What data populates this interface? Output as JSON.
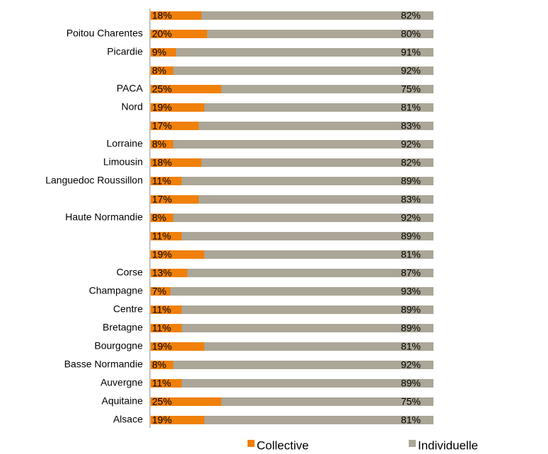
{
  "chart_data": {
    "type": "stacked-bar-horizontal",
    "categories": [
      null,
      "Poitou Charentes",
      "Picardie",
      null,
      "PACA",
      "Nord",
      null,
      "Lorraine",
      "Limousin",
      "Languedoc Roussillon",
      null,
      "Haute Normandie",
      null,
      null,
      "Corse",
      "Champagne",
      "Centre",
      "Bretagne",
      "Bourgogne",
      "Basse Normandie",
      "Auvergne",
      "Aquitaine",
      "Alsace"
    ],
    "series": [
      {
        "name": "Collective",
        "color": "#f0800a",
        "values": [
          18,
          20,
          9,
          8,
          25,
          19,
          17,
          8,
          18,
          11,
          17,
          8,
          11,
          19,
          13,
          7,
          11,
          11,
          19,
          8,
          11,
          25,
          19
        ],
        "value_labels": [
          "18%",
          "20%",
          "9%",
          "8%",
          "25%",
          "19%",
          "17%",
          "8%",
          "18%",
          "11%",
          "17%",
          "8%",
          "11%",
          "19%",
          "13%",
          "7%",
          "11%",
          "11%",
          "19%",
          "8%",
          "11%",
          "25%",
          "19%"
        ]
      },
      {
        "name": "Individuelle",
        "color": "#aba697",
        "values": [
          82,
          80,
          91,
          92,
          75,
          81,
          83,
          92,
          82,
          89,
          83,
          92,
          89,
          81,
          87,
          93,
          89,
          89,
          81,
          92,
          89,
          75,
          81
        ],
        "value_labels": [
          "82%",
          "80%",
          "91%",
          "92%",
          "75%",
          "81%",
          "83%",
          "92%",
          "82%",
          "89%",
          "83%",
          "92%",
          "89%",
          "81%",
          "87%",
          "93%",
          "89%",
          "89%",
          "81%",
          "92%",
          "89%",
          "75%",
          "81%"
        ]
      }
    ]
  }
}
